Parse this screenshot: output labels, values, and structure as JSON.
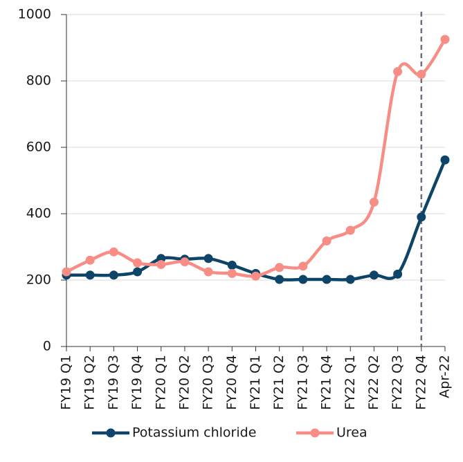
{
  "chart_data": {
    "type": "line",
    "categories": [
      "FY19 Q1",
      "FY19 Q2",
      "FY19 Q3",
      "FY19 Q4",
      "FY20 Q1",
      "FY20 Q2",
      "FY20 Q3",
      "FY20 Q4",
      "FY21 Q1",
      "FY21 Q2",
      "FY21 Q3",
      "FY21 Q4",
      "FY22 Q1",
      "FY22 Q2",
      "FY22 Q3",
      "FY22 Q4",
      "Apr-22"
    ],
    "series": [
      {
        "name": "Potassium chloride",
        "color": "#0e4468",
        "values": [
          215,
          215,
          215,
          225,
          265,
          263,
          265,
          245,
          220,
          202,
          202,
          202,
          202,
          215,
          218,
          390,
          562
        ]
      },
      {
        "name": "Urea",
        "color": "#f88d86",
        "values": [
          225,
          260,
          285,
          252,
          247,
          255,
          225,
          220,
          212,
          238,
          242,
          318,
          350,
          435,
          828,
          820,
          925
        ]
      }
    ],
    "ylim": [
      0,
      1000
    ],
    "yticks": [
      0,
      200,
      400,
      600,
      800,
      1000
    ],
    "grid": true,
    "vline_category": "FY22 Q4",
    "vline_color": "#6e6e80",
    "legend": "bottom",
    "smooth": true
  }
}
